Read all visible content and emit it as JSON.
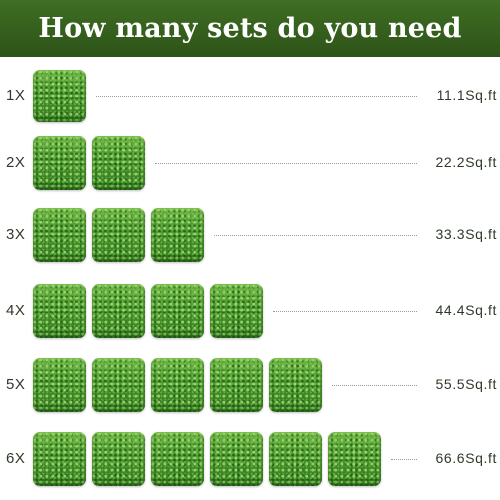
{
  "banner": {
    "title": "How many sets do you need"
  },
  "rows": [
    {
      "label": "1X",
      "tiles": 1,
      "value": "11.1Sq.ft"
    },
    {
      "label": "2X",
      "tiles": 2,
      "value": "22.2Sq.ft"
    },
    {
      "label": "3X",
      "tiles": 3,
      "value": "33.3Sq.ft"
    },
    {
      "label": "4X",
      "tiles": 4,
      "value": "44.4Sq.ft"
    },
    {
      "label": "5X",
      "tiles": 5,
      "value": "55.5Sq.ft"
    },
    {
      "label": "6X",
      "tiles": 6,
      "value": "66.6Sq.ft"
    }
  ],
  "colors": {
    "banner": "#355f1d",
    "tile": "#4a9a2c",
    "text": "#2f3a2a"
  },
  "icons": {
    "tile": "boxwood-panel-image"
  }
}
